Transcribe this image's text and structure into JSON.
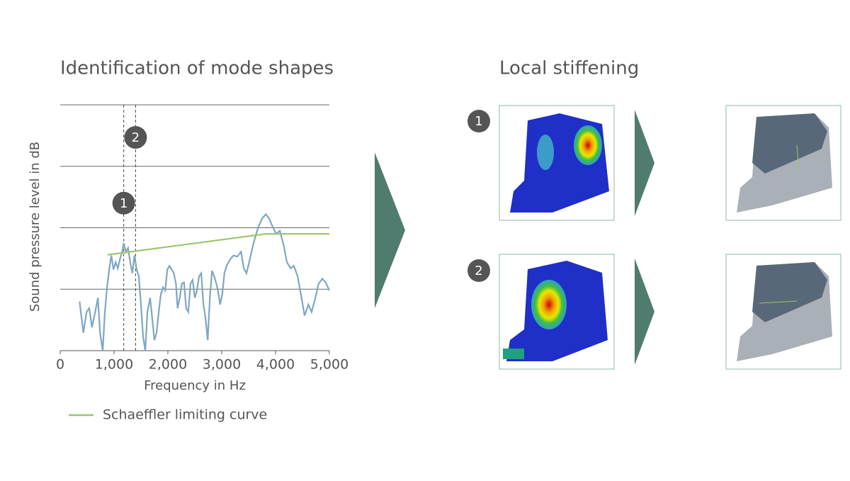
{
  "chart_data": {
    "type": "line",
    "title": "Identification of mode shapes",
    "xlabel": "Frequency in Hz",
    "ylabel": "Sound pressure level in dB",
    "xlim": [
      0,
      5000
    ],
    "xticks": [
      0,
      {
        "value": 1000,
        "label": "1,000"
      },
      {
        "value": 2000,
        "label": "2,000"
      },
      {
        "value": 3000,
        "label": "3,000"
      },
      {
        "value": 4000,
        "label": "4,000"
      },
      {
        "value": 5000,
        "label": "5,000"
      }
    ],
    "ylim": [
      0,
      4
    ],
    "yticks": [
      1,
      2,
      3,
      4
    ],
    "grid": true,
    "series": [
      {
        "color": "#7fa7c0",
        "x": [
          360,
          430,
          490,
          540,
          590,
          650,
          700,
          740,
          790,
          830,
          870,
          910,
          950,
          990,
          1030,
          1070,
          1110,
          1150,
          1180,
          1220,
          1260,
          1300,
          1340,
          1380,
          1420,
          1460,
          1500,
          1540,
          1580,
          1620,
          1670,
          1710,
          1750,
          1790,
          1830,
          1870,
          1910,
          1950,
          1990,
          2030,
          2070,
          2110,
          2150,
          2180,
          2220,
          2260,
          2300,
          2340,
          2380,
          2420,
          2460,
          2500,
          2540,
          2580,
          2620,
          2660,
          2700,
          2740,
          2780,
          2820,
          2860,
          2900,
          2930,
          2970,
          3010,
          3050,
          3090,
          3160,
          3220,
          3290,
          3360,
          3410,
          3460,
          3510,
          3570,
          3620,
          3680,
          3750,
          3820,
          3880,
          3950,
          4010,
          4080,
          4150,
          4210,
          4280,
          4340,
          4410,
          4470,
          4540,
          4610,
          4670,
          4740,
          4800,
          4870,
          4930,
          5000
        ],
        "values": [
          0.8,
          0.29,
          0.63,
          0.69,
          0.38,
          0.63,
          0.86,
          0.29,
          0.0,
          0.63,
          1.03,
          1.32,
          1.55,
          1.32,
          1.44,
          1.34,
          1.49,
          1.61,
          1.75,
          1.61,
          1.67,
          1.44,
          1.26,
          1.55,
          1.32,
          1.21,
          0.75,
          0.23,
          0.0,
          0.63,
          0.86,
          0.52,
          0.17,
          0.29,
          0.63,
          0.92,
          1.03,
          0.98,
          1.32,
          1.38,
          1.32,
          1.26,
          1.09,
          0.69,
          0.86,
          1.09,
          1.11,
          0.69,
          0.63,
          1.09,
          1.15,
          0.86,
          0.98,
          1.21,
          1.26,
          0.75,
          0.52,
          0.17,
          0.86,
          1.3,
          1.21,
          1.09,
          0.98,
          0.75,
          0.92,
          1.26,
          1.38,
          1.49,
          1.55,
          1.53,
          1.61,
          1.34,
          1.26,
          1.44,
          1.67,
          1.84,
          2.01,
          2.15,
          2.22,
          2.15,
          2.01,
          1.9,
          1.95,
          1.72,
          1.44,
          1.34,
          1.38,
          1.21,
          0.92,
          0.57,
          0.75,
          0.63,
          0.86,
          1.09,
          1.17,
          1.11,
          0.98
        ]
      },
      {
        "name": "Schaeffler limiting curve",
        "color": "#9dc36a",
        "x": [
          880,
          3820,
          5000
        ],
        "values": [
          1.56,
          1.9,
          1.9
        ]
      }
    ],
    "annotations": [
      {
        "label": "1",
        "x": 1180,
        "y": 2.4
      },
      {
        "label": "2",
        "x": 1400,
        "y": 3.47
      }
    ]
  },
  "stiffening": {
    "title": "Local stiffening",
    "rows": [
      {
        "label": "1"
      },
      {
        "label": "2"
      }
    ]
  }
}
